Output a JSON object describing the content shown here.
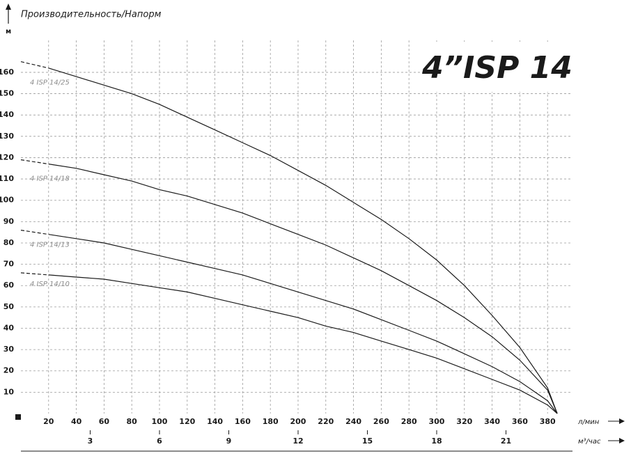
{
  "chart_data": {
    "type": "line",
    "title": "4”ISP 14",
    "axis_title": "Производительность/Напорм",
    "ylabel": "м",
    "xlabel": "л/мин",
    "x2label": "м³/час",
    "x": [
      0,
      20,
      40,
      60,
      80,
      100,
      120,
      140,
      160,
      180,
      200,
      220,
      240,
      260,
      280,
      300,
      320,
      340,
      360,
      380,
      387
    ],
    "series": [
      {
        "name": "4 ISP 14/25",
        "color": "#1a1a1a",
        "values": [
          165,
          162,
          158,
          154,
          150,
          145,
          139,
          133,
          127,
          121,
          114,
          107,
          99,
          91,
          82,
          72,
          60,
          46,
          31,
          12,
          0
        ]
      },
      {
        "name": "4 ISP 14/18",
        "color": "#1a1a1a",
        "values": [
          119,
          117,
          115,
          112,
          109,
          105,
          102,
          98,
          94,
          89,
          84,
          79,
          73,
          67,
          60,
          53,
          45,
          36,
          25,
          11,
          0
        ]
      },
      {
        "name": "4 ISP 14/13",
        "color": "#1a1a1a",
        "values": [
          86,
          84,
          82,
          80,
          77,
          74,
          71,
          68,
          65,
          61,
          57,
          53,
          49,
          44,
          39,
          34,
          28,
          22,
          15,
          6,
          0
        ]
      },
      {
        "name": "4 ISP 14/10",
        "color": "#1a1a1a",
        "values": [
          66,
          65,
          64,
          63,
          61,
          59,
          57,
          54,
          51,
          48,
          45,
          41,
          38,
          34,
          30,
          26,
          21,
          16,
          11,
          4,
          0
        ]
      }
    ],
    "xlim": [
      0,
      398
    ],
    "xticks": [
      20,
      40,
      60,
      80,
      100,
      120,
      140,
      160,
      180,
      200,
      220,
      240,
      260,
      280,
      300,
      320,
      340,
      360,
      380
    ],
    "ylim": [
      0,
      175
    ],
    "yticks": [
      10,
      20,
      30,
      40,
      50,
      60,
      70,
      80,
      90,
      100,
      110,
      120,
      130,
      140,
      150,
      160
    ],
    "x2lim": [
      0,
      23.88
    ],
    "x2ticks": [
      3,
      6,
      9,
      12,
      15,
      18,
      21
    ],
    "grid": true
  }
}
